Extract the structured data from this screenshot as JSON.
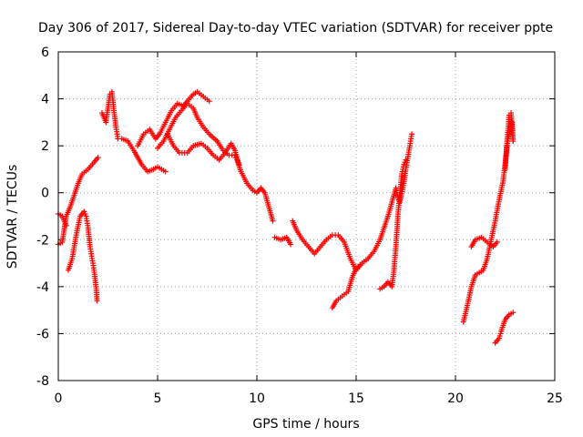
{
  "chart_data": {
    "type": "scatter",
    "title": "Day 306 of 2017, Sidereal Day-to-day VTEC variation (SDTVAR) for receiver ppte",
    "xlabel": "GPS time / hours",
    "ylabel": "SDTVAR / TECUs",
    "xlim": [
      0,
      25
    ],
    "ylim": [
      -8,
      6
    ],
    "xticks": [
      0,
      5,
      10,
      15,
      20,
      25
    ],
    "yticks": [
      -8,
      -6,
      -4,
      -2,
      0,
      2,
      4,
      6
    ],
    "grid": true,
    "marker": "+",
    "color": "#ff0000",
    "series": [
      {
        "name": "s1",
        "points": [
          [
            0,
            -2.2
          ],
          [
            0.2,
            -2.1
          ],
          [
            0.4,
            -1.0
          ],
          [
            0.6,
            -0.6
          ],
          [
            0.8,
            -0.1
          ],
          [
            1.0,
            0.4
          ],
          [
            1.2,
            0.8
          ],
          [
            1.5,
            1.0
          ],
          [
            1.8,
            1.3
          ],
          [
            2.0,
            1.5
          ]
        ]
      },
      {
        "name": "s2",
        "points": [
          [
            0,
            -0.9
          ],
          [
            0.2,
            -1.0
          ],
          [
            0.4,
            -1.4
          ]
        ]
      },
      {
        "name": "s3",
        "points": [
          [
            0.5,
            -3.3
          ],
          [
            0.7,
            -2.8
          ],
          [
            0.9,
            -1.8
          ],
          [
            1.1,
            -1.0
          ],
          [
            1.3,
            -0.8
          ],
          [
            1.4,
            -1.0
          ],
          [
            1.5,
            -1.5
          ],
          [
            1.6,
            -2.3
          ],
          [
            1.7,
            -2.8
          ],
          [
            1.8,
            -3.3
          ],
          [
            1.9,
            -4.0
          ],
          [
            1.95,
            -4.6
          ]
        ]
      },
      {
        "name": "s4",
        "points": [
          [
            2.2,
            3.4
          ],
          [
            2.4,
            3.0
          ],
          [
            2.5,
            3.6
          ],
          [
            2.6,
            4.2
          ],
          [
            2.7,
            4.3
          ],
          [
            2.8,
            3.5
          ],
          [
            2.9,
            2.8
          ],
          [
            3.0,
            2.3
          ],
          [
            3.2,
            2.3
          ],
          [
            3.5,
            2.2
          ],
          [
            3.8,
            1.8
          ],
          [
            4.0,
            1.5
          ],
          [
            4.2,
            1.2
          ],
          [
            4.5,
            0.9
          ],
          [
            4.8,
            1.0
          ],
          [
            5.0,
            1.1
          ],
          [
            5.2,
            1.0
          ],
          [
            5.4,
            0.9
          ]
        ]
      },
      {
        "name": "s5",
        "points": [
          [
            4.0,
            2.0
          ],
          [
            4.3,
            2.5
          ],
          [
            4.6,
            2.7
          ],
          [
            4.9,
            2.3
          ],
          [
            5.1,
            2.5
          ],
          [
            5.4,
            3.0
          ],
          [
            5.7,
            3.5
          ],
          [
            6.0,
            3.8
          ],
          [
            6.3,
            3.7
          ],
          [
            6.5,
            3.9
          ],
          [
            6.8,
            4.2
          ],
          [
            7.0,
            4.3
          ],
          [
            7.3,
            4.1
          ],
          [
            7.6,
            3.9
          ]
        ]
      },
      {
        "name": "s6",
        "points": [
          [
            5.0,
            1.9
          ],
          [
            5.3,
            2.2
          ],
          [
            5.6,
            2.7
          ],
          [
            5.9,
            3.2
          ],
          [
            6.2,
            3.5
          ],
          [
            6.5,
            3.8
          ],
          [
            6.8,
            3.6
          ],
          [
            7.0,
            3.2
          ],
          [
            7.3,
            2.8
          ],
          [
            7.6,
            2.5
          ],
          [
            8.0,
            2.2
          ],
          [
            8.3,
            1.8
          ],
          [
            8.6,
            1.6
          ],
          [
            8.9,
            1.6
          ],
          [
            9.0,
            1.4
          ],
          [
            9.2,
            0.9
          ],
          [
            9.5,
            0.4
          ],
          [
            9.8,
            0.1
          ],
          [
            10.0,
            0.0
          ],
          [
            10.2,
            0.2
          ],
          [
            10.4,
            0.0
          ],
          [
            10.6,
            -0.6
          ],
          [
            10.8,
            -1.2
          ]
        ]
      },
      {
        "name": "s7",
        "points": [
          [
            5.5,
            2.5
          ],
          [
            5.8,
            2.0
          ],
          [
            6.1,
            1.7
          ],
          [
            6.5,
            1.7
          ],
          [
            6.8,
            2.0
          ],
          [
            7.2,
            2.1
          ],
          [
            7.5,
            1.9
          ],
          [
            7.8,
            1.6
          ],
          [
            8.1,
            1.4
          ],
          [
            8.4,
            1.7
          ],
          [
            8.7,
            2.1
          ],
          [
            8.9,
            1.8
          ],
          [
            9.1,
            1.2
          ]
        ]
      },
      {
        "name": "s8",
        "points": [
          [
            10.9,
            -1.9
          ],
          [
            11.2,
            -2.0
          ],
          [
            11.5,
            -1.9
          ],
          [
            11.7,
            -2.2
          ]
        ]
      },
      {
        "name": "s9",
        "points": [
          [
            11.8,
            -1.2
          ],
          [
            12.0,
            -1.6
          ],
          [
            12.3,
            -2.0
          ],
          [
            12.6,
            -2.3
          ],
          [
            12.9,
            -2.6
          ],
          [
            13.2,
            -2.3
          ],
          [
            13.5,
            -2.0
          ],
          [
            13.8,
            -1.8
          ],
          [
            14.1,
            -1.8
          ],
          [
            14.4,
            -2.1
          ],
          [
            14.7,
            -2.8
          ],
          [
            15.0,
            -3.3
          ],
          [
            15.3,
            -3.0
          ],
          [
            15.6,
            -2.8
          ]
        ]
      },
      {
        "name": "s10",
        "points": [
          [
            13.8,
            -4.9
          ],
          [
            14.0,
            -4.6
          ],
          [
            14.3,
            -4.4
          ],
          [
            14.6,
            -4.2
          ],
          [
            14.8,
            -3.6
          ],
          [
            15.0,
            -3.2
          ],
          [
            15.3,
            -3.0
          ],
          [
            15.6,
            -2.8
          ],
          [
            15.9,
            -2.5
          ],
          [
            16.2,
            -2.0
          ],
          [
            16.4,
            -1.5
          ],
          [
            16.6,
            -1.0
          ],
          [
            16.8,
            -0.4
          ],
          [
            17.0,
            0.2
          ],
          [
            17.1,
            -0.2
          ],
          [
            17.2,
            -0.4
          ],
          [
            17.4,
            0.4
          ],
          [
            17.5,
            1.0
          ],
          [
            17.7,
            2.0
          ],
          [
            17.8,
            2.5
          ]
        ]
      },
      {
        "name": "s11",
        "points": [
          [
            16.2,
            -4.1
          ],
          [
            16.4,
            -4.0
          ],
          [
            16.6,
            -3.8
          ],
          [
            16.8,
            -4.0
          ],
          [
            16.9,
            -3.3
          ],
          [
            17.0,
            -2.3
          ],
          [
            17.1,
            -1.0
          ],
          [
            17.2,
            0.0
          ],
          [
            17.3,
            0.8
          ],
          [
            17.4,
            1.2
          ],
          [
            17.5,
            1.4
          ]
        ]
      },
      {
        "name": "s12",
        "points": [
          [
            20.4,
            -5.5
          ],
          [
            20.6,
            -4.8
          ],
          [
            20.8,
            -4.0
          ],
          [
            21.0,
            -3.5
          ],
          [
            21.2,
            -3.4
          ],
          [
            21.4,
            -3.3
          ],
          [
            21.6,
            -2.8
          ],
          [
            21.8,
            -2.0
          ],
          [
            22.0,
            -1.2
          ],
          [
            22.2,
            -0.3
          ],
          [
            22.4,
            0.5
          ],
          [
            22.5,
            1.2
          ],
          [
            22.6,
            2.0
          ],
          [
            22.7,
            2.5
          ],
          [
            22.8,
            3.0
          ]
        ]
      },
      {
        "name": "s13",
        "points": [
          [
            20.8,
            -2.3
          ],
          [
            21.0,
            -2.0
          ],
          [
            21.3,
            -1.9
          ],
          [
            21.6,
            -2.1
          ],
          [
            21.9,
            -2.3
          ],
          [
            22.1,
            -2.1
          ]
        ]
      },
      {
        "name": "s14",
        "points": [
          [
            22.0,
            -6.4
          ],
          [
            22.2,
            -6.2
          ],
          [
            22.3,
            -5.9
          ],
          [
            22.5,
            -5.4
          ],
          [
            22.7,
            -5.2
          ],
          [
            22.9,
            -5.1
          ]
        ]
      },
      {
        "name": "s15",
        "points": [
          [
            22.5,
            1.0
          ],
          [
            22.6,
            2.2
          ],
          [
            22.7,
            3.3
          ],
          [
            22.8,
            3.4
          ],
          [
            22.9,
            2.2
          ],
          [
            22.85,
            3.0
          ]
        ]
      }
    ]
  }
}
